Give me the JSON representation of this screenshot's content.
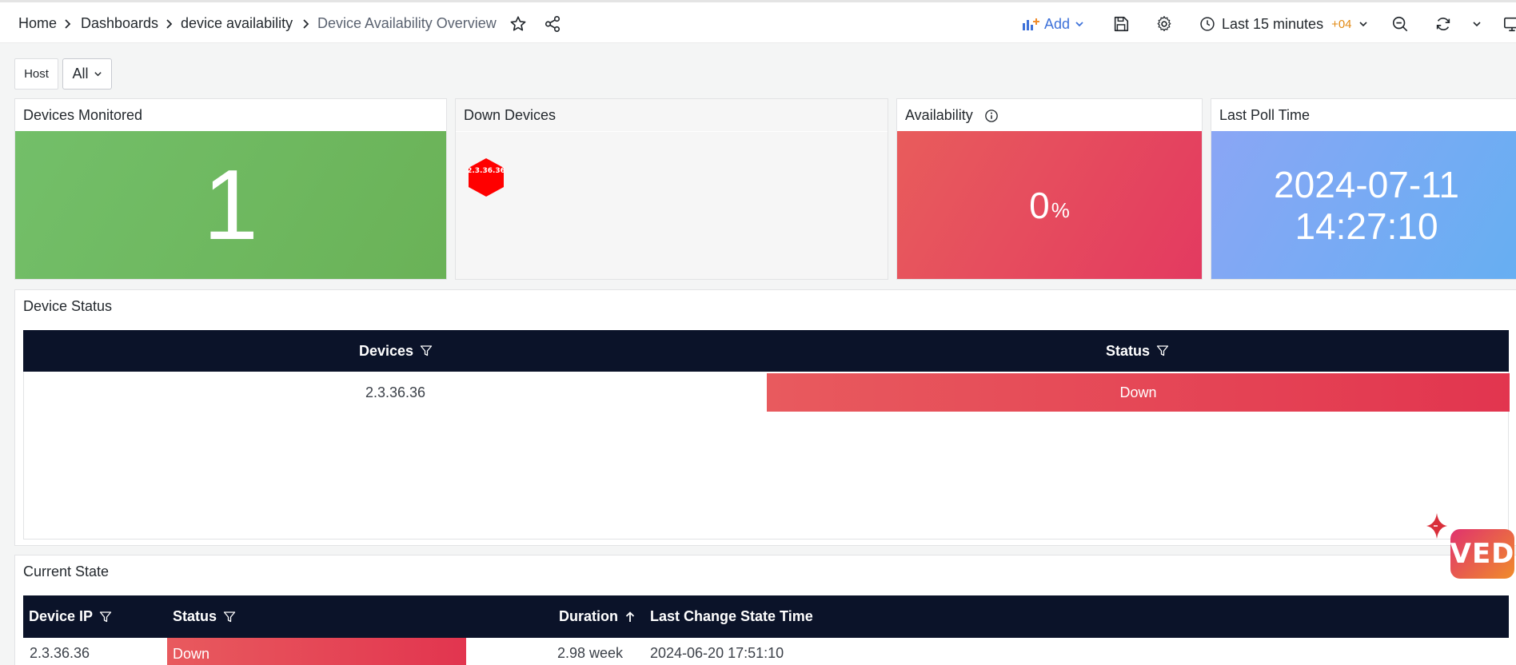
{
  "breadcrumb": {
    "home": "Home",
    "dashboards": "Dashboards",
    "folder": "device availability",
    "current": "Device Availability Overview"
  },
  "toolbar": {
    "add_label": "Add",
    "time_range": "Last 15 minutes",
    "timezone": "+04"
  },
  "variables": {
    "host_label": "Host",
    "host_value": "All"
  },
  "panels": {
    "devices_monitored": {
      "title": "Devices Monitored",
      "value": "1"
    },
    "down_devices": {
      "title": "Down Devices",
      "hex_label": "2.3.36.36"
    },
    "availability": {
      "title": "Availability",
      "value": "0",
      "unit": "%"
    },
    "last_poll": {
      "title": "Last Poll Time",
      "date": "2024-07-11",
      "time": "14:27:10"
    }
  },
  "device_status": {
    "title": "Device Status",
    "columns": [
      "Devices",
      "Status"
    ],
    "rows": [
      {
        "device": "2.3.36.36",
        "status": "Down"
      }
    ]
  },
  "current_state": {
    "title": "Current State",
    "columns": [
      "Device IP",
      "Status",
      "Duration",
      "Last Change State Time"
    ],
    "rows": [
      {
        "ip": "2.3.36.36",
        "status": "Down",
        "duration": "2.98 week",
        "last_change": "2024-06-20 17:51:10"
      }
    ]
  },
  "logo": {
    "text": "VED"
  },
  "colors": {
    "accent": "#3d71d9",
    "ok": "#73bf69",
    "down": "#e2354f",
    "header": "#0b1329",
    "hex": "#ff0000"
  }
}
